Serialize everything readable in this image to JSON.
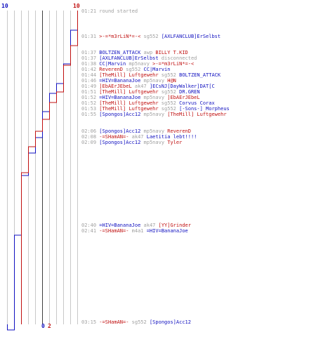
{
  "chart_data": {
    "type": "line",
    "title": "",
    "xlim": [
      0,
      10
    ],
    "top_left_label": "10",
    "top_right_label": "10",
    "bottom_blue_label": "0",
    "bottom_red_label": "2",
    "series": [
      {
        "color": "#1010c0",
        "steps": [
          [
            0,
            10
          ],
          [
            28,
            9
          ],
          [
            76,
            8
          ],
          [
            104,
            7
          ],
          [
            118,
            6
          ],
          [
            144,
            5
          ],
          [
            181,
            4
          ],
          [
            203,
            3
          ],
          [
            235,
            2
          ],
          [
            320,
            1
          ],
          [
            455,
            0
          ]
        ]
      },
      {
        "color": "#c01010",
        "steps": [
          [
            0,
            10
          ],
          [
            50,
            9
          ],
          [
            78,
            8
          ],
          [
            116,
            7
          ],
          [
            131,
            6
          ],
          [
            155,
            5
          ],
          [
            172,
            4
          ],
          [
            194,
            3
          ],
          [
            231,
            2
          ]
        ]
      }
    ]
  },
  "log": [
    {
      "time": "01:21",
      "parts": [
        {
          "c": "ev",
          "t": "round started"
        }
      ]
    },
    {
      "time": "01:31",
      "parts": [
        {
          "c": "r",
          "t": ">-=*m3rLiN*=-<"
        },
        {
          "c": "ev",
          "t": " sg552 "
        },
        {
          "c": "b",
          "t": "[AXLFANCLUB]ErSelbst"
        }
      ]
    },
    {
      "time": "01:37",
      "parts": [
        {
          "c": "b",
          "t": "BOLTZEN_ATTACK"
        },
        {
          "c": "ev",
          "t": " awp "
        },
        {
          "c": "r",
          "t": "BILLY T.KID"
        }
      ]
    },
    {
      "time": "01:37",
      "parts": [
        {
          "c": "b",
          "t": "[AXLFANCLUB]ErSelbst"
        },
        {
          "c": "ev",
          "t": " disconnected"
        }
      ]
    },
    {
      "time": "01:38",
      "parts": [
        {
          "c": "b",
          "t": "CC|Marvin"
        },
        {
          "c": "ev",
          "t": " mp5navy "
        },
        {
          "c": "r",
          "t": ">-=*m3rLiN*=-<"
        }
      ]
    },
    {
      "time": "01:42",
      "parts": [
        {
          "c": "r",
          "t": "ReverenD"
        },
        {
          "c": "ev",
          "t": " sg552 "
        },
        {
          "c": "b",
          "t": "CC|Marvin"
        }
      ]
    },
    {
      "time": "01:44",
      "parts": [
        {
          "c": "r",
          "t": "[TheMill] Luftgewehr"
        },
        {
          "c": "ev",
          "t": " sg552 "
        },
        {
          "c": "b",
          "t": "BOLTZEN_ATTACK"
        }
      ]
    },
    {
      "time": "01:46",
      "parts": [
        {
          "c": "b",
          "t": "=HIV=BananaJoe"
        },
        {
          "c": "ev",
          "t": " mp5navy "
        },
        {
          "c": "r",
          "t": "H@N"
        }
      ]
    },
    {
      "time": "01:49",
      "parts": [
        {
          "c": "r",
          "t": "]EbAErJEbeL"
        },
        {
          "c": "ev",
          "t": " ak47 "
        },
        {
          "c": "b",
          "t": "]ECsNJ[DayWalker]DAT[C"
        }
      ]
    },
    {
      "time": "01:51",
      "parts": [
        {
          "c": "r",
          "t": "[TheMill] Luftgewehr"
        },
        {
          "c": "ev",
          "t": " sg552 "
        },
        {
          "c": "b",
          "t": "DR.GREN"
        }
      ]
    },
    {
      "time": "01:52",
      "parts": [
        {
          "c": "b",
          "t": "=HIV=BananaJoe"
        },
        {
          "c": "ev",
          "t": " mp5navy "
        },
        {
          "c": "r",
          "t": "]EbAErJEbeL"
        }
      ]
    },
    {
      "time": "01:52",
      "parts": [
        {
          "c": "r",
          "t": "[TheMill] Luftgewehr"
        },
        {
          "c": "ev",
          "t": " sg552 "
        },
        {
          "c": "b",
          "t": "Corvus Corax"
        }
      ]
    },
    {
      "time": "01:53",
      "parts": [
        {
          "c": "r",
          "t": "[TheMill] Luftgewehr"
        },
        {
          "c": "ev",
          "t": " sg552 "
        },
        {
          "c": "b",
          "t": "[-Sons-] Morpheus"
        }
      ]
    },
    {
      "time": "01:55",
      "parts": [
        {
          "c": "b",
          "t": "[Spongos]Acc12"
        },
        {
          "c": "ev",
          "t": " mp5navy "
        },
        {
          "c": "r",
          "t": "[TheMill] Luftgewehr"
        }
      ]
    },
    {
      "time": "02:06",
      "parts": [
        {
          "c": "b",
          "t": "[Spongos]Acc12"
        },
        {
          "c": "ev",
          "t": " mp5navy "
        },
        {
          "c": "r",
          "t": "ReverenD"
        }
      ]
    },
    {
      "time": "02:08",
      "parts": [
        {
          "c": "r",
          "t": "-=SHamAN=-"
        },
        {
          "c": "ev",
          "t": " ak47 "
        },
        {
          "c": "b",
          "t": "Laetitia lebt!!!!"
        }
      ]
    },
    {
      "time": "02:09",
      "parts": [
        {
          "c": "b",
          "t": "[Spongos]Acc12"
        },
        {
          "c": "ev",
          "t": " mp5navy "
        },
        {
          "c": "r",
          "t": "Tyler"
        }
      ]
    },
    {
      "time": "02:40",
      "parts": [
        {
          "c": "b",
          "t": "=HIV=BananaJoe"
        },
        {
          "c": "ev",
          "t": " ak47 "
        },
        {
          "c": "r",
          "t": "[YY]Grinder"
        }
      ]
    },
    {
      "time": "02:41",
      "parts": [
        {
          "c": "r",
          "t": "-=SHamAN=-"
        },
        {
          "c": "ev",
          "t": " m4a1 "
        },
        {
          "c": "b",
          "t": "=HIV=BananaJoe"
        }
      ]
    },
    {
      "time": "03:15",
      "parts": [
        {
          "c": "r",
          "t": "-=SHamAN=-"
        },
        {
          "c": "ev",
          "t": " sg552 "
        },
        {
          "c": "b",
          "t": "[Spongos]Acc12"
        }
      ]
    }
  ]
}
